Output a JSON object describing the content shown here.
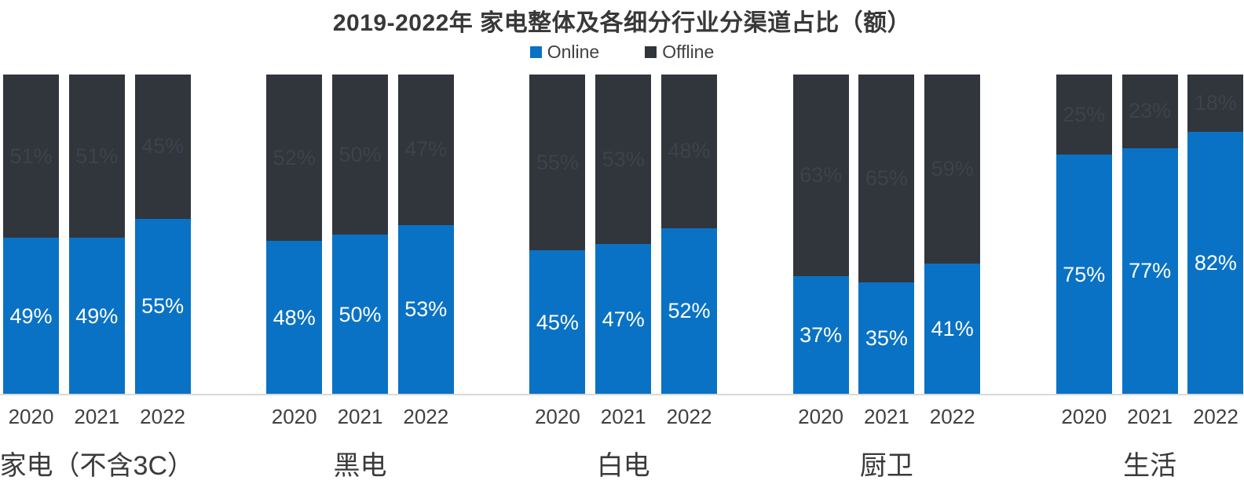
{
  "title": "2019-2022年 家电整体及各细分行业分渠道占比（额）",
  "legend": {
    "online": "Online",
    "offline": "Offline"
  },
  "colors": {
    "online": "#0A72C4",
    "offline": "#31353C",
    "offline_label": "#3D424C",
    "online_label": "#FFFFFF",
    "axis_line": "#D9D9D9",
    "text": "#404040"
  },
  "chart_data": {
    "type": "bar",
    "stacked": true,
    "orientation": "vertical",
    "unit": "percent",
    "title": "2019-2022年 家电整体及各细分行业分渠道占比（额）",
    "legend": [
      "Online",
      "Offline"
    ],
    "legend_position": "top",
    "ylim": [
      0,
      100
    ],
    "gridlines": false,
    "axes_hidden": true,
    "categories": [
      "2020",
      "2021",
      "2022"
    ],
    "groups": [
      {
        "name": "家电（不含3C）",
        "series": [
          {
            "name": "Online",
            "values": [
              49,
              49,
              55
            ]
          },
          {
            "name": "Offline",
            "values": [
              51,
              51,
              45
            ]
          }
        ]
      },
      {
        "name": "黑电",
        "series": [
          {
            "name": "Online",
            "values": [
              48,
              50,
              53
            ]
          },
          {
            "name": "Offline",
            "values": [
              52,
              50,
              47
            ]
          }
        ]
      },
      {
        "name": "白电",
        "series": [
          {
            "name": "Online",
            "values": [
              45,
              47,
              52
            ]
          },
          {
            "name": "Offline",
            "values": [
              55,
              53,
              48
            ]
          }
        ]
      },
      {
        "name": "厨卫",
        "series": [
          {
            "name": "Online",
            "values": [
              37,
              35,
              41
            ]
          },
          {
            "name": "Offline",
            "values": [
              63,
              65,
              59
            ]
          }
        ]
      },
      {
        "name": "生活",
        "series": [
          {
            "name": "Online",
            "values": [
              75,
              77,
              82
            ]
          },
          {
            "name": "Offline",
            "values": [
              25,
              23,
              18
            ]
          }
        ]
      }
    ]
  }
}
